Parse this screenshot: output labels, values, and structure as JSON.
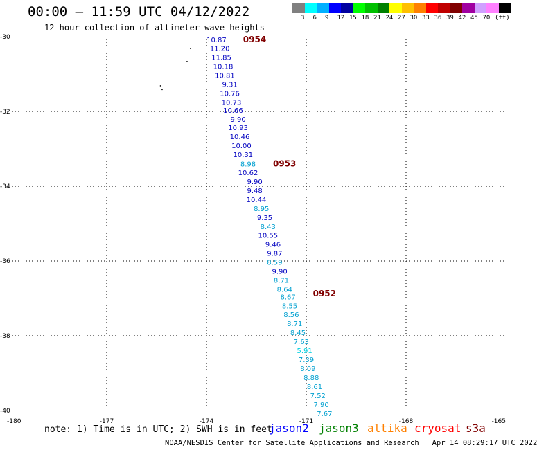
{
  "header": {
    "title": "00:00 – 11:59 UTC 04/12/2022",
    "subtitle": "12 hour collection of altimeter wave heights"
  },
  "legend": {
    "colors": [
      "#808080",
      "#00ffff",
      "#00b0ff",
      "#0000ff",
      "#0000a0",
      "#00ff00",
      "#00c000",
      "#008000",
      "#ffff00",
      "#ffc000",
      "#ff8000",
      "#ff0000",
      "#c00000",
      "#800000",
      "#a000a0",
      "#d0a0ff",
      "#ff80ff",
      "#000000"
    ],
    "labels": [
      "3",
      "6",
      "9",
      "12",
      "15",
      "18",
      "21",
      "24",
      "27",
      "30",
      "33",
      "36",
      "39",
      "42",
      "45",
      "70",
      "(ft)"
    ]
  },
  "map": {
    "x_ticks": [
      "-180",
      "-177",
      "-174",
      "-171",
      "-168",
      "-165"
    ],
    "y_ticks": [
      "-30",
      "-32",
      "-34",
      "-36",
      "-38",
      "-40"
    ],
    "lon_range": [
      -180,
      -165
    ],
    "lat_range": [
      -40,
      -30
    ],
    "time_labels": [
      {
        "text": "0954",
        "lon": -172.9,
        "lat": -30.07
      },
      {
        "text": "0953",
        "lon": -172.0,
        "lat": -33.4
      },
      {
        "text": "0952",
        "lon": -170.8,
        "lat": -36.87
      }
    ],
    "observations": [
      {
        "v": "10.87",
        "lon": -173.7,
        "lat": -30.07,
        "c": "#0000c0"
      },
      {
        "v": "11.20",
        "lon": -173.6,
        "lat": -30.31,
        "c": "#0000c0"
      },
      {
        "v": "11.85",
        "lon": -173.55,
        "lat": -30.55,
        "c": "#0000c0"
      },
      {
        "v": "10.18",
        "lon": -173.5,
        "lat": -30.79,
        "c": "#0000c0"
      },
      {
        "v": "10.81",
        "lon": -173.45,
        "lat": -31.03,
        "c": "#0000c0"
      },
      {
        "v": "9.31",
        "lon": -173.3,
        "lat": -31.27,
        "c": "#0000c0"
      },
      {
        "v": "10.76",
        "lon": -173.3,
        "lat": -31.51,
        "c": "#0000c0"
      },
      {
        "v": "10.73",
        "lon": -173.25,
        "lat": -31.75,
        "c": "#0000c0"
      },
      {
        "v": "10.66",
        "lon": -173.2,
        "lat": -31.96,
        "c": "#0000c0"
      },
      {
        "v": "9.90",
        "lon": -173.05,
        "lat": -32.2,
        "c": "#0000c0"
      },
      {
        "v": "10.93",
        "lon": -173.05,
        "lat": -32.43,
        "c": "#0000c0"
      },
      {
        "v": "10.46",
        "lon": -173.0,
        "lat": -32.67,
        "c": "#0000c0"
      },
      {
        "v": "10.00",
        "lon": -172.95,
        "lat": -32.91,
        "c": "#0000c0"
      },
      {
        "v": "10.31",
        "lon": -172.9,
        "lat": -33.15,
        "c": "#0000c0"
      },
      {
        "v": "8.98",
        "lon": -172.75,
        "lat": -33.4,
        "c": "#00a0d0"
      },
      {
        "v": "10.62",
        "lon": -172.75,
        "lat": -33.63,
        "c": "#0000c0"
      },
      {
        "v": "9.90",
        "lon": -172.55,
        "lat": -33.87,
        "c": "#0000c0"
      },
      {
        "v": "9.48",
        "lon": -172.55,
        "lat": -34.11,
        "c": "#0000c0"
      },
      {
        "v": "10.44",
        "lon": -172.5,
        "lat": -34.35,
        "c": "#0000c0"
      },
      {
        "v": "8.95",
        "lon": -172.35,
        "lat": -34.59,
        "c": "#00a0d0"
      },
      {
        "v": "9.35",
        "lon": -172.25,
        "lat": -34.83,
        "c": "#0000c0"
      },
      {
        "v": "8.43",
        "lon": -172.15,
        "lat": -35.07,
        "c": "#00a0d0"
      },
      {
        "v": "10.55",
        "lon": -172.15,
        "lat": -35.31,
        "c": "#0000c0"
      },
      {
        "v": "9.46",
        "lon": -172.0,
        "lat": -35.55,
        "c": "#0000c0"
      },
      {
        "v": "9.87",
        "lon": -171.95,
        "lat": -35.79,
        "c": "#0000c0"
      },
      {
        "v": "8.59",
        "lon": -171.95,
        "lat": -36.03,
        "c": "#00a0d0"
      },
      {
        "v": "9.90",
        "lon": -171.8,
        "lat": -36.27,
        "c": "#0000c0"
      },
      {
        "v": "8.71",
        "lon": -171.75,
        "lat": -36.51,
        "c": "#00a0d0"
      },
      {
        "v": "8.64",
        "lon": -171.65,
        "lat": -36.75,
        "c": "#00a0d0"
      },
      {
        "v": "8.67",
        "lon": -171.55,
        "lat": -36.95,
        "c": "#00a0d0"
      },
      {
        "v": "8.55",
        "lon": -171.5,
        "lat": -37.19,
        "c": "#00a0d0"
      },
      {
        "v": "8.56",
        "lon": -171.45,
        "lat": -37.43,
        "c": "#00a0d0"
      },
      {
        "v": "8.71",
        "lon": -171.35,
        "lat": -37.67,
        "c": "#00a0d0"
      },
      {
        "v": "8.45",
        "lon": -171.25,
        "lat": -37.91,
        "c": "#00a0d0"
      },
      {
        "v": "7.63",
        "lon": -171.15,
        "lat": -38.15,
        "c": "#00a0d0"
      },
      {
        "v": "5.91",
        "lon": -171.05,
        "lat": -38.39,
        "c": "#00d0e0"
      },
      {
        "v": "7.39",
        "lon": -171.0,
        "lat": -38.63,
        "c": "#00a0d0"
      },
      {
        "v": "8.09",
        "lon": -170.95,
        "lat": -38.87,
        "c": "#00a0d0"
      },
      {
        "v": "8.88",
        "lon": -170.85,
        "lat": -39.11,
        "c": "#00a0d0"
      },
      {
        "v": "8.61",
        "lon": -170.75,
        "lat": -39.35,
        "c": "#00a0d0"
      },
      {
        "v": "7.52",
        "lon": -170.65,
        "lat": -39.59,
        "c": "#00a0d0"
      },
      {
        "v": "7.90",
        "lon": -170.55,
        "lat": -39.83,
        "c": "#00a0d0"
      },
      {
        "v": "7.67",
        "lon": -170.45,
        "lat": -40.07,
        "c": "#00a0d0"
      }
    ]
  },
  "footer": {
    "note": "note: 1) Time is in UTC; 2) SWH is in feet",
    "satellites": [
      {
        "name": "jason2",
        "color": "#0000ff"
      },
      {
        "name": "jason3",
        "color": "#008000"
      },
      {
        "name": "altika",
        "color": "#ff8000"
      },
      {
        "name": "cryosat",
        "color": "#ff0000"
      },
      {
        "name": "s3a",
        "color": "#800000"
      }
    ],
    "credit": "NOAA/NESDIS Center for Satellite Applications and Research   Apr 14 08:29:17 UTC 2022"
  }
}
